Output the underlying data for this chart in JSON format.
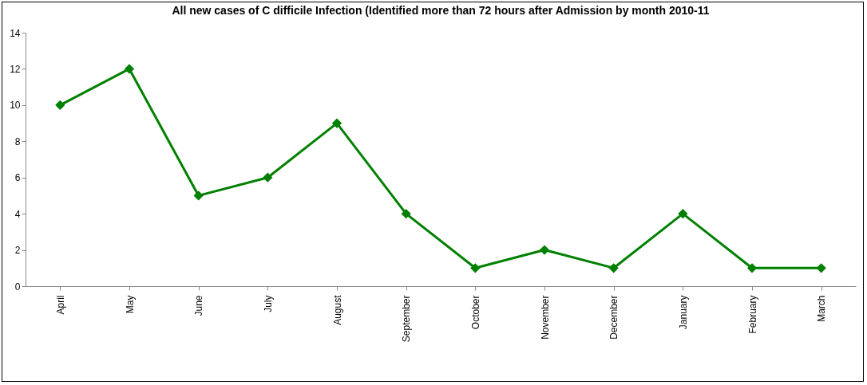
{
  "chart_data": {
    "type": "line",
    "title": "All new cases of C difficile Infection (Identified more than 72 hours after Admission by month 2010-11",
    "categories": [
      "April",
      "May",
      "June",
      "July",
      "August",
      "September",
      "October",
      "November",
      "December",
      "January",
      "February",
      "March"
    ],
    "series": [
      {
        "color": "#008000",
        "values": [
          10,
          12,
          5,
          6,
          9,
          4,
          1,
          2,
          1,
          4,
          1,
          1
        ]
      }
    ],
    "ylim": [
      0,
      14
    ],
    "yticks": [
      0,
      2,
      4,
      6,
      8,
      10,
      12,
      14
    ],
    "grid": false,
    "legend": false,
    "marker": "diamond",
    "line_style": "solid"
  }
}
